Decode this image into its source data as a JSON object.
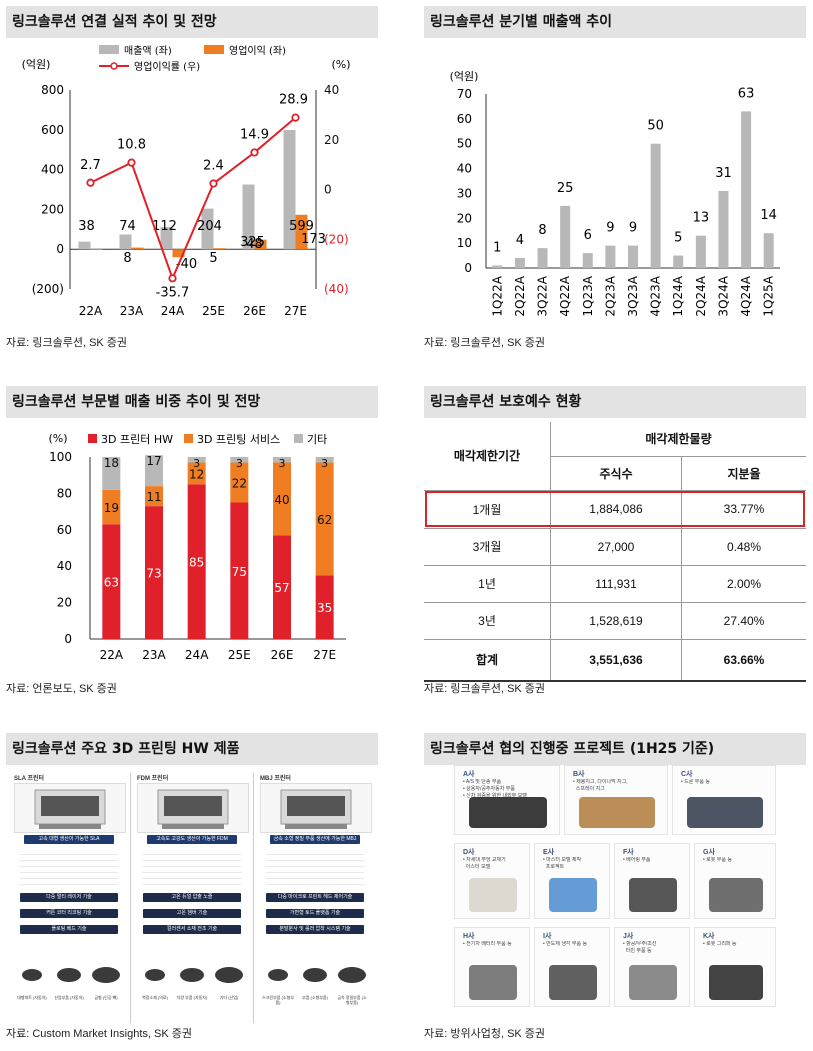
{
  "chart1": {
    "title": "링크솔루션 연결 실적 추이 및 전망",
    "unit_left": "(억원)",
    "unit_right": "(%)",
    "legend": [
      "매출액 (좌)",
      "영업이익 (좌)",
      "영업이익률 (우)"
    ],
    "source": "자료: 링크솔루션, SK 증권",
    "left_ticks": [
      "800",
      "600",
      "400",
      "200",
      "0",
      "(200)"
    ],
    "right_ticks": [
      "40",
      "20",
      "0",
      "(20)",
      "(40)"
    ],
    "value_labels_sales": [
      "38",
      "74",
      "112",
      "204",
      "325",
      "599"
    ],
    "value_labels_op": [
      "",
      "8",
      "-40",
      "5",
      "48",
      "173"
    ],
    "value_labels_margin": [
      "2.7",
      "10.8",
      "-35.7",
      "2.4",
      "14.9",
      "28.9"
    ]
  },
  "chart2": {
    "title": "링크솔루션 분기별 매출액 추이",
    "unit": "(억원)",
    "source": "자료: 링크솔루션, SK 증권",
    "ticks": [
      "70",
      "60",
      "50",
      "40",
      "30",
      "20",
      "10",
      "0"
    ],
    "value_labels": [
      "1",
      "4",
      "8",
      "25",
      "6",
      "9",
      "9",
      "50",
      "5",
      "13",
      "31",
      "63",
      "14"
    ]
  },
  "chart3": {
    "title": "링크솔루션 부문별 매출 비중 추이 및 전망",
    "unit": "(%)",
    "legend": [
      "3D 프린터 HW",
      "3D 프린팅 서비스",
      "기타"
    ],
    "source": "자료: 언론보도, SK 증권",
    "ticks": [
      "100",
      "80",
      "60",
      "40",
      "20",
      "0"
    ]
  },
  "table": {
    "title": "링크솔루션 보호예수 현황",
    "col_period": "매각제한기간",
    "col_group": "매각제한물량",
    "col_shares": "주식수",
    "col_ratio": "지분율",
    "rows": [
      {
        "period": "1개월",
        "shares": "1,884,086",
        "ratio": "33.77%"
      },
      {
        "period": "3개월",
        "shares": "27,000",
        "ratio": "0.48%"
      },
      {
        "period": "1년",
        "shares": "111,931",
        "ratio": "2.00%"
      },
      {
        "period": "3년",
        "shares": "1,528,619",
        "ratio": "27.40%"
      }
    ],
    "total": {
      "period": "합계",
      "shares": "3,551,636",
      "ratio": "63.66%"
    },
    "source": "자료: 링크솔루션, SK 증권"
  },
  "products": {
    "title": "링크솔루션 주요 3D 프린팅 HW 제품",
    "source": "자료: Custom Market Insights, SK 증권",
    "columns": [
      {
        "name": "SLA 프린터",
        "chip": "고속 대형 생산이 가능한 SLA",
        "chips": [
          "다중 멀티 레이저 기술",
          "커튼 코터 리코팅 기술",
          "플로팅 베드 기술"
        ],
        "parts": [
          "대형파트 (자동차)",
          "산업부품 (자동차)",
          "금형 (인공 뼈)"
        ]
      },
      {
        "name": "FDM 프린터",
        "chip": "고속도 고강도 생산이 가능한 FDM",
        "chips": [
          "고온 듀얼 압출 노즐",
          "고온 챔버 기술",
          "컬러센서 소재 전조 기술"
        ],
        "parts": [
          "복합소재 (의료)",
          "차량 부품 (자동차)",
          "기타 (산업)"
        ]
      },
      {
        "name": "MBJ 프린터",
        "chip": "금속 소형 정밀 부품 생산에 가능한 MBJ",
        "chips": [
          "다중 마이크로 프린트 헤드 제어기술",
          "가변형 토드 플랫폼 기술",
          "분말분사 및 롤러 압착 시스템 기술"
        ],
        "parts": [
          "스크린부품 (소형부품)",
          "부품 (소형부품)",
          "금속 정밀부품 (소형부품)"
        ]
      }
    ]
  },
  "projects": {
    "title": "링크솔루션 협의 진행중 프로젝트 (1H25 기준)",
    "source": "자료: 방위사업청, SK 증권",
    "cards": [
      {
        "name": "A사",
        "desc": "• A/S 및 단종 부품\n• 상용자/공주자동차 부품\n• 신차 검증을 위한 내외부 모델"
      },
      {
        "name": "B사",
        "desc": "• 제봉지그, 다이나믹 지그,\n  스프레이 지그"
      },
      {
        "name": "C사",
        "desc": "• 드론 부품 등"
      },
      {
        "name": "D사",
        "desc": "• 차세대 부엉 교체기\n  아스터 모델"
      },
      {
        "name": "E사",
        "desc": "• 마스터 모델 제작\n  프로젝트"
      },
      {
        "name": "F사",
        "desc": "• 베어링 부품"
      },
      {
        "name": "G사",
        "desc": "• 로봇 부품 등"
      },
      {
        "name": "H사",
        "desc": "• 전기차 배터리 부품 등"
      },
      {
        "name": "I사",
        "desc": "• 반도체 냉각 부품 등"
      },
      {
        "name": "J사",
        "desc": "• 항공/우주/조선\n  터빈 부품 등"
      },
      {
        "name": "K사",
        "desc": "• 로봇 그리퍼 등"
      }
    ]
  },
  "chart_data": [
    {
      "type": "bar",
      "title": "링크솔루션 연결 실적 추이 및 전망",
      "categories": [
        "22A",
        "23A",
        "24A",
        "25E",
        "26E",
        "27E"
      ],
      "series": [
        {
          "name": "매출액 (좌)",
          "type": "bar",
          "axis": "left",
          "values": [
            38,
            74,
            112,
            204,
            325,
            599
          ],
          "color": "#b8b8b8"
        },
        {
          "name": "영업이익 (좌)",
          "type": "bar",
          "axis": "left",
          "values": [
            1,
            8,
            -40,
            5,
            48,
            173
          ],
          "color": "#f07d22"
        },
        {
          "name": "영업이익률 (우)",
          "type": "line",
          "axis": "right",
          "values": [
            2.7,
            10.8,
            -35.7,
            2.4,
            14.9,
            28.9
          ],
          "color": "#e0202a"
        }
      ],
      "ylim_left": [
        -200,
        800
      ],
      "ylim_right": [
        -40,
        40
      ],
      "ylabel": "(억원)",
      "ylabel_right": "(%)",
      "legend_position": "top"
    },
    {
      "type": "bar",
      "title": "링크솔루션 분기별 매출액 추이",
      "categories": [
        "1Q22A",
        "2Q22A",
        "3Q22A",
        "4Q22A",
        "1Q23A",
        "2Q23A",
        "3Q23A",
        "4Q23A",
        "1Q24A",
        "2Q24A",
        "3Q24A",
        "4Q24A",
        "1Q25A"
      ],
      "values": [
        1,
        4,
        8,
        25,
        6,
        9,
        9,
        50,
        5,
        13,
        31,
        63,
        14
      ],
      "ylabel": "(억원)",
      "ylim": [
        0,
        70
      ],
      "color": "#b8b8b8"
    },
    {
      "type": "bar",
      "stacked": true,
      "title": "링크솔루션 부문별 매출 비중 추이 및 전망",
      "categories": [
        "22A",
        "23A",
        "24A",
        "25E",
        "26E",
        "27E"
      ],
      "series": [
        {
          "name": "3D 프린터 HW",
          "values": [
            63,
            73,
            85,
            75,
            57,
            35
          ],
          "color": "#e0202a"
        },
        {
          "name": "3D 프린팅 서비스",
          "values": [
            19,
            11,
            12,
            22,
            40,
            62
          ],
          "color": "#f07d22"
        },
        {
          "name": "기타",
          "values": [
            18,
            17,
            3,
            3,
            3,
            3
          ],
          "color": "#b8b8b8"
        }
      ],
      "ylabel": "(%)",
      "ylim": [
        0,
        100
      ],
      "legend_position": "top"
    }
  ]
}
